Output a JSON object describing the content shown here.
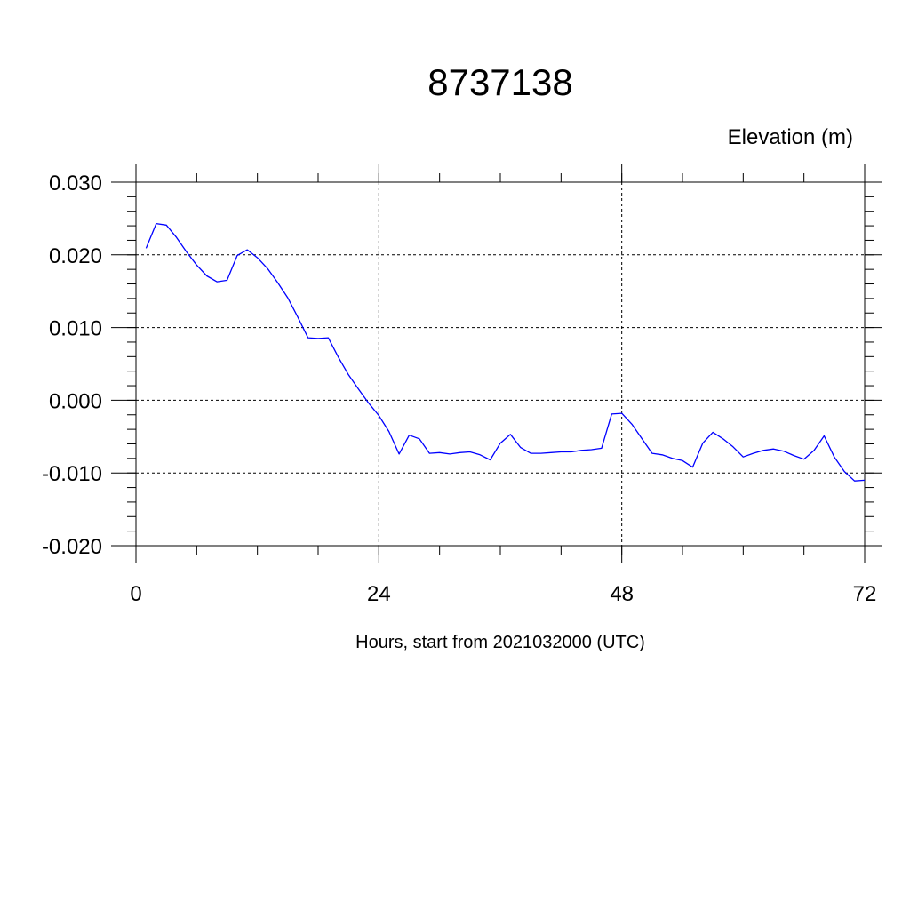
{
  "chart_data": {
    "type": "line",
    "title": "8737138",
    "units_label": "Elevation (m)",
    "xlabel": "Hours, start from 2021032000 (UTC)",
    "ylabel": "",
    "xlim": [
      0,
      72
    ],
    "ylim": [
      -0.02,
      0.03
    ],
    "x_ticks": [
      0,
      24,
      48,
      72
    ],
    "x_tick_labels": [
      "0",
      "24",
      "48",
      "72"
    ],
    "y_ticks": [
      0.03,
      0.02,
      0.01,
      0.0,
      -0.01,
      -0.02
    ],
    "y_tick_labels": [
      "0.030",
      "0.020",
      "0.010",
      "0.000",
      "-0.010",
      "-0.020"
    ],
    "grid": true,
    "line_color": "#0000ff",
    "series": [
      {
        "x": [
          1,
          2,
          3,
          4,
          5,
          6,
          7,
          8,
          9,
          10,
          11,
          12,
          13,
          14,
          15,
          16,
          17,
          18,
          19,
          20,
          21,
          22,
          23,
          24,
          25,
          26,
          27,
          28,
          29,
          30,
          31,
          32,
          33,
          34,
          35,
          36,
          37,
          38,
          39,
          40,
          41,
          42,
          43,
          44,
          45,
          46,
          47,
          48,
          49,
          50,
          51,
          52,
          53,
          54,
          55,
          56,
          57,
          58,
          59,
          60,
          61,
          62,
          63,
          64,
          65,
          66,
          67,
          68,
          69,
          70,
          71,
          72
        ],
        "values": [
          0.0209,
          0.0243,
          0.0241,
          0.0224,
          0.0204,
          0.0186,
          0.0171,
          0.0163,
          0.0165,
          0.0199,
          0.0207,
          0.0196,
          0.0181,
          0.0162,
          0.0141,
          0.0114,
          0.0086,
          0.0085,
          0.0086,
          0.0059,
          0.0035,
          0.0015,
          -0.0004,
          -0.0021,
          -0.0043,
          -0.0074,
          -0.0048,
          -0.0053,
          -0.0073,
          -0.0072,
          -0.0074,
          -0.0072,
          -0.0071,
          -0.0075,
          -0.0082,
          -0.0059,
          -0.0047,
          -0.0065,
          -0.0073,
          -0.0073,
          -0.0072,
          -0.0071,
          -0.0071,
          -0.0069,
          -0.0068,
          -0.0066,
          -0.0019,
          -0.0018,
          -0.0033,
          -0.0053,
          -0.0073,
          -0.0075,
          -0.008,
          -0.0083,
          -0.0092,
          -0.0059,
          -0.0044,
          -0.0053,
          -0.0064,
          -0.0078,
          -0.0073,
          -0.0069,
          -0.0067,
          -0.007,
          -0.0076,
          -0.0081,
          -0.0069,
          -0.0049,
          -0.0078,
          -0.0098,
          -0.0111,
          -0.011
        ]
      }
    ]
  }
}
